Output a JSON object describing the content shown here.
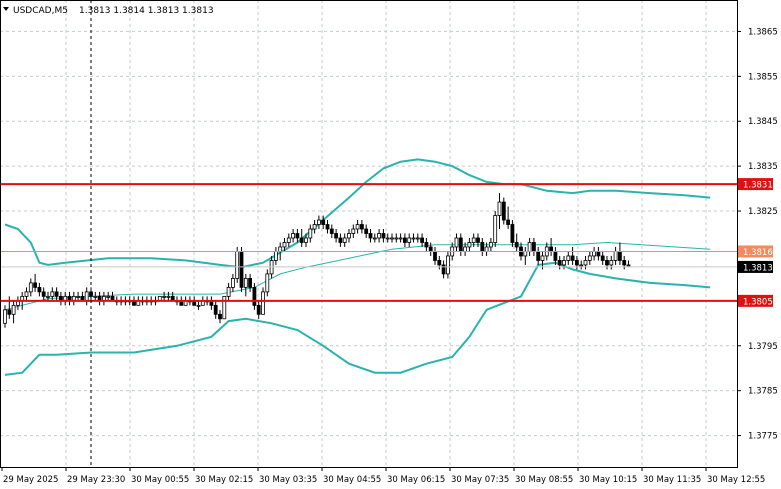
{
  "chart_data": {
    "type": "candlestick",
    "title": "",
    "symbol_label": "USDCAD,M5",
    "ohlc_readout": "1.3813 1.3814 1.3813 1.3813",
    "xlabel": "",
    "ylabel": "",
    "ylim": [
      1.3768,
      1.3872
    ],
    "y_ticks": [
      "1.3865",
      "1.3855",
      "1.3845",
      "1.3835",
      "1.3825",
      "1.3795",
      "1.3785",
      "1.3775"
    ],
    "x_ticks": [
      "29 May 2025",
      "29 May 23:30",
      "30 May 00:55",
      "30 May 02:15",
      "30 May 03:35",
      "30 May 04:55",
      "30 May 06:15",
      "30 May 07:35",
      "30 May 08:55",
      "30 May 10:15",
      "30 May 11:35",
      "30 May 12:55"
    ],
    "grid": true,
    "colors": {
      "grid": "#c3c9d3",
      "band": "#2ab3ad",
      "level": "#e01010",
      "bid": "#f08a60",
      "candle": "#000000"
    },
    "horizontal_levels": [
      {
        "value": 1.3831,
        "label": "1.3831"
      },
      {
        "value": 1.3805,
        "label": "1.3805"
      }
    ],
    "bid_line": {
      "value": 1.3816,
      "label": "1.3816"
    },
    "current_price": {
      "value": 1.3813,
      "label": "1.3813"
    },
    "bollinger": {
      "upper": [
        [
          0,
          1.3822
        ],
        [
          3,
          1.3821
        ],
        [
          6,
          1.3818
        ],
        [
          8,
          1.38135
        ],
        [
          10,
          1.3813
        ],
        [
          14,
          1.38135
        ],
        [
          24,
          1.38145
        ],
        [
          34,
          1.38145
        ],
        [
          42,
          1.3814
        ],
        [
          50,
          1.3813
        ],
        [
          55,
          1.38125
        ],
        [
          60,
          1.38135
        ],
        [
          68,
          1.3818
        ],
        [
          74,
          1.3823
        ],
        [
          80,
          1.3828
        ],
        [
          84,
          1.38315
        ],
        [
          88,
          1.38345
        ],
        [
          92,
          1.3836
        ],
        [
          96,
          1.38365
        ],
        [
          100,
          1.3836
        ],
        [
          104,
          1.3835
        ],
        [
          108,
          1.3833
        ],
        [
          112,
          1.38315
        ],
        [
          116,
          1.3831
        ],
        [
          120,
          1.3831
        ],
        [
          126,
          1.38295
        ],
        [
          132,
          1.3829
        ],
        [
          136,
          1.38295
        ],
        [
          142,
          1.38295
        ],
        [
          150,
          1.3829
        ],
        [
          158,
          1.38285
        ],
        [
          164,
          1.3828
        ]
      ],
      "middle": [
        [
          0,
          1.3803
        ],
        [
          10,
          1.38055
        ],
        [
          20,
          1.3806
        ],
        [
          30,
          1.38065
        ],
        [
          40,
          1.38065
        ],
        [
          50,
          1.38065
        ],
        [
          58,
          1.3808
        ],
        [
          64,
          1.3811
        ],
        [
          70,
          1.38125
        ],
        [
          80,
          1.38145
        ],
        [
          90,
          1.38165
        ],
        [
          100,
          1.38175
        ],
        [
          110,
          1.38175
        ],
        [
          116,
          1.38175
        ],
        [
          124,
          1.38175
        ],
        [
          132,
          1.38175
        ],
        [
          140,
          1.3818
        ],
        [
          148,
          1.38175
        ],
        [
          156,
          1.3817
        ],
        [
          164,
          1.38165
        ]
      ],
      "lower": [
        [
          0,
          1.37885
        ],
        [
          4,
          1.3789
        ],
        [
          6,
          1.3791
        ],
        [
          8,
          1.3793
        ],
        [
          12,
          1.3793
        ],
        [
          20,
          1.37935
        ],
        [
          30,
          1.37935
        ],
        [
          40,
          1.3795
        ],
        [
          48,
          1.3797
        ],
        [
          52,
          1.38005
        ],
        [
          56,
          1.3801
        ],
        [
          62,
          1.38
        ],
        [
          68,
          1.37985
        ],
        [
          74,
          1.3795
        ],
        [
          80,
          1.3791
        ],
        [
          86,
          1.3789
        ],
        [
          92,
          1.3789
        ],
        [
          98,
          1.3791
        ],
        [
          104,
          1.37925
        ],
        [
          108,
          1.3797
        ],
        [
          112,
          1.3803
        ],
        [
          116,
          1.38045
        ],
        [
          120,
          1.3806
        ],
        [
          124,
          1.3813
        ],
        [
          128,
          1.38135
        ],
        [
          132,
          1.3812
        ],
        [
          136,
          1.3811
        ],
        [
          142,
          1.381
        ],
        [
          150,
          1.3809
        ],
        [
          158,
          1.38085
        ],
        [
          164,
          1.3808
        ]
      ]
    },
    "candles": [
      [
        1.38,
        1.3804,
        1.3799,
        1.3803
      ],
      [
        1.3803,
        1.3806,
        1.3801,
        1.3802
      ],
      [
        1.3802,
        1.3805,
        1.38,
        1.3804
      ],
      [
        1.3804,
        1.3806,
        1.3803,
        1.3805
      ],
      [
        1.3805,
        1.3807,
        1.3803,
        1.3806
      ],
      [
        1.3806,
        1.3808,
        1.3805,
        1.3807
      ],
      [
        1.3807,
        1.381,
        1.3806,
        1.3809
      ],
      [
        1.3809,
        1.3811,
        1.3807,
        1.3808
      ],
      [
        1.3808,
        1.3809,
        1.3806,
        1.3807
      ],
      [
        1.3807,
        1.3808,
        1.3805,
        1.3806
      ],
      [
        1.3806,
        1.3807,
        1.3805,
        1.3806
      ],
      [
        1.3806,
        1.3808,
        1.3805,
        1.3807
      ],
      [
        1.3807,
        1.3808,
        1.3805,
        1.3806
      ],
      [
        1.3806,
        1.3807,
        1.3804,
        1.3805
      ],
      [
        1.3805,
        1.3807,
        1.3804,
        1.3806
      ],
      [
        1.3806,
        1.3807,
        1.3804,
        1.3805
      ],
      [
        1.3805,
        1.3807,
        1.3804,
        1.3806
      ],
      [
        1.3806,
        1.3807,
        1.3805,
        1.3806
      ],
      [
        1.3806,
        1.3807,
        1.3805,
        1.3805
      ],
      [
        1.3805,
        1.3808,
        1.3804,
        1.3807
      ],
      [
        1.3807,
        1.3808,
        1.3805,
        1.3806
      ],
      [
        1.3806,
        1.3807,
        1.3805,
        1.3806
      ],
      [
        1.3806,
        1.3807,
        1.3804,
        1.3805
      ],
      [
        1.3805,
        1.3807,
        1.3804,
        1.3806
      ],
      [
        1.3806,
        1.3807,
        1.3805,
        1.3806
      ],
      [
        1.3806,
        1.3807,
        1.3805,
        1.3805
      ],
      [
        1.3805,
        1.3806,
        1.3804,
        1.3805
      ],
      [
        1.3805,
        1.3806,
        1.3804,
        1.3805
      ],
      [
        1.3805,
        1.3806,
        1.3804,
        1.3805
      ],
      [
        1.3805,
        1.3806,
        1.3804,
        1.3805
      ],
      [
        1.3805,
        1.3806,
        1.3804,
        1.3804
      ],
      [
        1.3804,
        1.3806,
        1.3804,
        1.3805
      ],
      [
        1.3805,
        1.3806,
        1.3804,
        1.3805
      ],
      [
        1.3805,
        1.3806,
        1.3804,
        1.3805
      ],
      [
        1.3805,
        1.3806,
        1.3804,
        1.3805
      ],
      [
        1.3805,
        1.3806,
        1.3804,
        1.3805
      ],
      [
        1.3805,
        1.3806,
        1.3805,
        1.3806
      ],
      [
        1.3806,
        1.3807,
        1.3805,
        1.3806
      ],
      [
        1.3806,
        1.3807,
        1.3805,
        1.3806
      ],
      [
        1.3806,
        1.3807,
        1.3805,
        1.3805
      ],
      [
        1.3805,
        1.3806,
        1.3804,
        1.3805
      ],
      [
        1.3805,
        1.3806,
        1.3804,
        1.3804
      ],
      [
        1.3804,
        1.3806,
        1.3804,
        1.3805
      ],
      [
        1.3805,
        1.3806,
        1.3804,
        1.3805
      ],
      [
        1.3805,
        1.3806,
        1.3804,
        1.3804
      ],
      [
        1.3804,
        1.3805,
        1.3803,
        1.3804
      ],
      [
        1.3804,
        1.3806,
        1.3804,
        1.3805
      ],
      [
        1.3805,
        1.3806,
        1.3804,
        1.3805
      ],
      [
        1.3805,
        1.3806,
        1.3803,
        1.3804
      ],
      [
        1.3804,
        1.3805,
        1.3801,
        1.3802
      ],
      [
        1.3802,
        1.3803,
        1.38,
        1.3801
      ],
      [
        1.3801,
        1.3806,
        1.3801,
        1.3806
      ],
      [
        1.3806,
        1.3809,
        1.3805,
        1.3808
      ],
      [
        1.3808,
        1.3811,
        1.3807,
        1.381
      ],
      [
        1.381,
        1.3817,
        1.3809,
        1.3816
      ],
      [
        1.3816,
        1.3817,
        1.3807,
        1.3808
      ],
      [
        1.3808,
        1.3811,
        1.3806,
        1.381
      ],
      [
        1.381,
        1.3811,
        1.3807,
        1.3808
      ],
      [
        1.3808,
        1.3809,
        1.3803,
        1.3804
      ],
      [
        1.3804,
        1.3805,
        1.3801,
        1.3802
      ],
      [
        1.3802,
        1.3808,
        1.3802,
        1.3807
      ],
      [
        1.3807,
        1.3812,
        1.3806,
        1.3811
      ],
      [
        1.3811,
        1.3815,
        1.381,
        1.3814
      ],
      [
        1.3814,
        1.3817,
        1.3813,
        1.3816
      ],
      [
        1.3816,
        1.3818,
        1.3814,
        1.3817
      ],
      [
        1.3817,
        1.3819,
        1.3816,
        1.3818
      ],
      [
        1.3818,
        1.382,
        1.3817,
        1.3819
      ],
      [
        1.3819,
        1.3821,
        1.3818,
        1.382
      ],
      [
        1.382,
        1.3821,
        1.3818,
        1.3819
      ],
      [
        1.3819,
        1.3821,
        1.3817,
        1.3818
      ],
      [
        1.3818,
        1.382,
        1.3817,
        1.3819
      ],
      [
        1.3819,
        1.3822,
        1.3818,
        1.3821
      ],
      [
        1.3821,
        1.3823,
        1.382,
        1.3822
      ],
      [
        1.3822,
        1.3824,
        1.3821,
        1.3823
      ],
      [
        1.3823,
        1.3824,
        1.3821,
        1.3822
      ],
      [
        1.3822,
        1.3823,
        1.382,
        1.3821
      ],
      [
        1.3821,
        1.3822,
        1.3819,
        1.382
      ],
      [
        1.382,
        1.3821,
        1.3818,
        1.3819
      ],
      [
        1.3819,
        1.382,
        1.3817,
        1.3818
      ],
      [
        1.3818,
        1.382,
        1.3817,
        1.3819
      ],
      [
        1.3819,
        1.3821,
        1.3818,
        1.382
      ],
      [
        1.382,
        1.3822,
        1.3819,
        1.3821
      ],
      [
        1.3821,
        1.3823,
        1.382,
        1.3822
      ],
      [
        1.3822,
        1.3823,
        1.382,
        1.3821
      ],
      [
        1.3821,
        1.3822,
        1.3819,
        1.382
      ],
      [
        1.382,
        1.3821,
        1.3818,
        1.3819
      ],
      [
        1.3819,
        1.382,
        1.3818,
        1.3819
      ],
      [
        1.3819,
        1.3821,
        1.3818,
        1.382
      ],
      [
        1.382,
        1.3821,
        1.3818,
        1.3819
      ],
      [
        1.3819,
        1.382,
        1.3818,
        1.3819
      ],
      [
        1.3819,
        1.382,
        1.3818,
        1.3819
      ],
      [
        1.3819,
        1.382,
        1.3818,
        1.3819
      ],
      [
        1.3819,
        1.382,
        1.3818,
        1.3819
      ],
      [
        1.3819,
        1.382,
        1.3817,
        1.3818
      ],
      [
        1.3818,
        1.382,
        1.3817,
        1.3819
      ],
      [
        1.3819,
        1.382,
        1.3818,
        1.3819
      ],
      [
        1.3819,
        1.382,
        1.3818,
        1.3819
      ],
      [
        1.3819,
        1.382,
        1.3817,
        1.3818
      ],
      [
        1.3818,
        1.3819,
        1.3816,
        1.3817
      ],
      [
        1.3817,
        1.3818,
        1.3815,
        1.3816
      ],
      [
        1.3816,
        1.3817,
        1.3813,
        1.3814
      ],
      [
        1.3814,
        1.3815,
        1.3812,
        1.3813
      ],
      [
        1.3813,
        1.3814,
        1.381,
        1.3811
      ],
      [
        1.3811,
        1.3816,
        1.381,
        1.3815
      ],
      [
        1.3815,
        1.3818,
        1.3814,
        1.3817
      ],
      [
        1.3817,
        1.382,
        1.3816,
        1.3819
      ],
      [
        1.3819,
        1.382,
        1.3815,
        1.3816
      ],
      [
        1.3816,
        1.3818,
        1.3815,
        1.3817
      ],
      [
        1.3817,
        1.3819,
        1.3816,
        1.3818
      ],
      [
        1.3818,
        1.382,
        1.3817,
        1.3819
      ],
      [
        1.3819,
        1.382,
        1.3817,
        1.3818
      ],
      [
        1.3818,
        1.3819,
        1.3815,
        1.3816
      ],
      [
        1.3816,
        1.3818,
        1.3815,
        1.3817
      ],
      [
        1.3817,
        1.3819,
        1.3816,
        1.3818
      ],
      [
        1.3818,
        1.3825,
        1.3817,
        1.3824
      ],
      [
        1.3824,
        1.3829,
        1.3821,
        1.3827
      ],
      [
        1.3827,
        1.3828,
        1.3822,
        1.3823
      ],
      [
        1.3823,
        1.3826,
        1.3821,
        1.3822
      ],
      [
        1.3822,
        1.3823,
        1.3817,
        1.3818
      ],
      [
        1.3818,
        1.382,
        1.3816,
        1.3817
      ],
      [
        1.3817,
        1.3818,
        1.3814,
        1.3815
      ],
      [
        1.3815,
        1.3817,
        1.3813,
        1.3816
      ],
      [
        1.3816,
        1.3819,
        1.3815,
        1.3818
      ],
      [
        1.3818,
        1.3819,
        1.3815,
        1.3816
      ],
      [
        1.3816,
        1.3817,
        1.3813,
        1.3814
      ],
      [
        1.3814,
        1.3816,
        1.3812,
        1.3815
      ],
      [
        1.3815,
        1.3818,
        1.3814,
        1.3817
      ],
      [
        1.3817,
        1.3819,
        1.3815,
        1.3816
      ],
      [
        1.3816,
        1.3817,
        1.3813,
        1.3814
      ],
      [
        1.3814,
        1.3815,
        1.3812,
        1.3813
      ],
      [
        1.3813,
        1.3815,
        1.3812,
        1.3814
      ],
      [
        1.3814,
        1.3816,
        1.3813,
        1.3815
      ],
      [
        1.3815,
        1.3817,
        1.3813,
        1.3814
      ],
      [
        1.3814,
        1.3815,
        1.3812,
        1.3813
      ],
      [
        1.3813,
        1.3814,
        1.3812,
        1.3813
      ],
      [
        1.3813,
        1.3815,
        1.3812,
        1.3814
      ],
      [
        1.3814,
        1.3816,
        1.3813,
        1.3815
      ],
      [
        1.3815,
        1.3817,
        1.3814,
        1.3816
      ],
      [
        1.3816,
        1.3817,
        1.3814,
        1.3815
      ],
      [
        1.3815,
        1.3816,
        1.3813,
        1.3814
      ],
      [
        1.3814,
        1.3815,
        1.3812,
        1.3813
      ],
      [
        1.3813,
        1.3815,
        1.3812,
        1.3814
      ],
      [
        1.3814,
        1.3817,
        1.3813,
        1.3816
      ],
      [
        1.3816,
        1.3818,
        1.3813,
        1.3814
      ],
      [
        1.3814,
        1.3815,
        1.3812,
        1.3813
      ],
      [
        1.3813,
        1.3814,
        1.3813,
        1.3813
      ]
    ]
  }
}
